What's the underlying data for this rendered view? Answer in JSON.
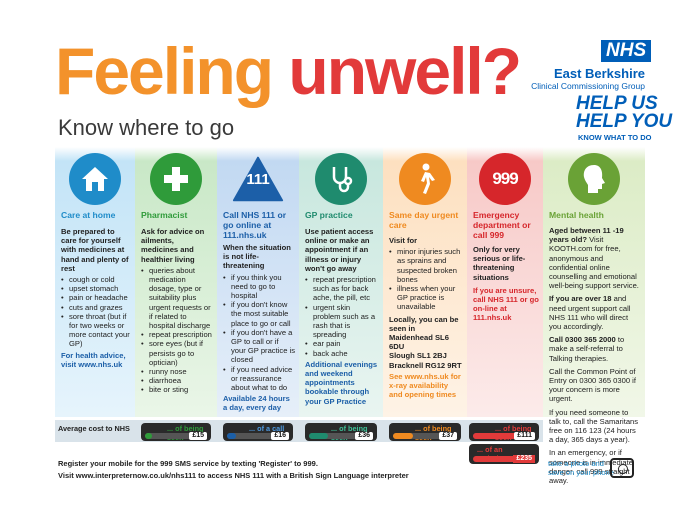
{
  "header": {
    "title_part1": "Feeling",
    "title_part2": "unwell?",
    "subtitle": "Know where to go",
    "nhs_logo": "NHS",
    "org_name": "East Berkshire",
    "org_subname": "Clinical Commissioning Group",
    "campaign_line1": "HELP US",
    "campaign_line2": "HELP YOU",
    "campaign_line3": "KNOW WHAT TO DO"
  },
  "columns": {
    "care_at_home": {
      "icon": "house-icon",
      "title": "Care at home",
      "intro": "Be prepared to care for yourself with medicines at hand and plenty of rest",
      "items": [
        "cough or cold",
        "upset stomach",
        "pain or headache",
        "cuts and grazes",
        "sore throat (but if for two weeks or more contact your GP)"
      ],
      "note": "For health advice, visit www.nhs.uk"
    },
    "pharmacist": {
      "icon": "plus-cross-icon",
      "title": "Pharmacist",
      "intro": "Ask for advice on ailments, medicines and healthier living",
      "items": [
        "queries about medication dosage, type or suitability plus urgent requests or if related to hospital discharge",
        "repeat prescription",
        "sore eyes (but if persists go to optician)",
        "runny nose",
        "diarrhoea",
        "bite or sting"
      ]
    },
    "nhs111": {
      "icon": "nhs-111-triangle-icon",
      "icon_text": "111",
      "title": "Call NHS 111 or go online at 111.nhs.uk",
      "intro": "When the situation is not life-threatening",
      "items": [
        "if you think you need to go to hospital",
        "if you don't know the most suitable place to go or call",
        "if you don't have a GP to call or if your GP practice is closed",
        "if you need advice or reassurance about what to do"
      ],
      "note": "Available 24 hours a day, every day"
    },
    "gp": {
      "icon": "stethoscope-icon",
      "title": "GP practice",
      "intro": "Use patient access online or make an appointment if an illness or injury won't go away",
      "items": [
        "repeat prescription such as for back ache, the pill, etc",
        "urgent skin problem such as a rash that is spreading",
        "ear pain",
        "back ache"
      ],
      "note": "Additional evenings and weekend appointments bookable through your GP Practice"
    },
    "urgent_care": {
      "icon": "walking-person-icon",
      "title": "Same day urgent care",
      "intro": "Visit for",
      "items": [
        "minor injuries such as sprains and suspected broken bones",
        "illness when your GP practice is unavailable"
      ],
      "location_intro": "Locally, you can be seen in",
      "locations": [
        "Maidenhead SL6 6DU",
        "Slough SL1 2BJ",
        "Bracknell RG12 9RT"
      ],
      "note": "See www.nhs.uk for x-ray availability and opening times"
    },
    "emergency": {
      "icon": "999-circle-icon",
      "icon_text": "999",
      "title": "Emergency department or call 999",
      "intro": "Only for very serious or life-threatening situations",
      "note": "If you are unsure, call NHS 111 or go on-line at 111.nhs.uk"
    },
    "mental_health": {
      "icon": "head-profile-icon",
      "title": "Mental health",
      "p1_bold": "Aged between 11 -19 years old?",
      "p1_rest": "Visit KOOTH.com for free, anonymous and confidential online counselling and emotional well-being support service.",
      "p2_bold": "If you are over 18",
      "p2_rest": "and need urgent support call NHS 111 who will direct you accordingly.",
      "p3_bold": "Call 0300 365 2000",
      "p3_rest": "to make a self-referral to Talking therapies.",
      "p4": "Call the Common Point of Entry on 0300 365 0300 if your concern is more urgent.",
      "p5": "If you need someone to talk to, call the Samaritans free on 116 123 (24 hours a day, 365 days a year).",
      "p6": "In an emergency, or if someone is in immediate danger, call 999 straight away."
    }
  },
  "costs": {
    "label": "Average cost to NHS",
    "pharmacist": {
      "label": "... of being seen",
      "price": "£15",
      "level": 0.12,
      "color": "#2f9b3a"
    },
    "nhs111": {
      "label": "... of a call",
      "price": "£16",
      "level": 0.14,
      "color": "#1c5fa8"
    },
    "gp": {
      "label": "... of being seen",
      "price": "£36",
      "level": 0.3,
      "color": "#1f8b6e"
    },
    "urgent_care": {
      "label": "... of being seen",
      "price": "£37",
      "level": 0.32,
      "color": "#ef8a20"
    },
    "emergency": {
      "label": "... of being seen",
      "price": "£111",
      "level": 0.85,
      "color": "#e23a3a"
    },
    "ambulance": {
      "label": "... of an ambulance",
      "price": "£235"
    }
  },
  "footer": {
    "line1": "Register your mobile for the 999 SMS service by texting 'Register' to 999.",
    "line2": "Visit www.interpreternow.co.uk/nhs111 to access NHS 111 with a British Sign Language interpreter",
    "photo_line1": "take a photo and",
    "photo_line2": "save on your phone",
    "photo_icon": "phone-camera-icon"
  }
}
